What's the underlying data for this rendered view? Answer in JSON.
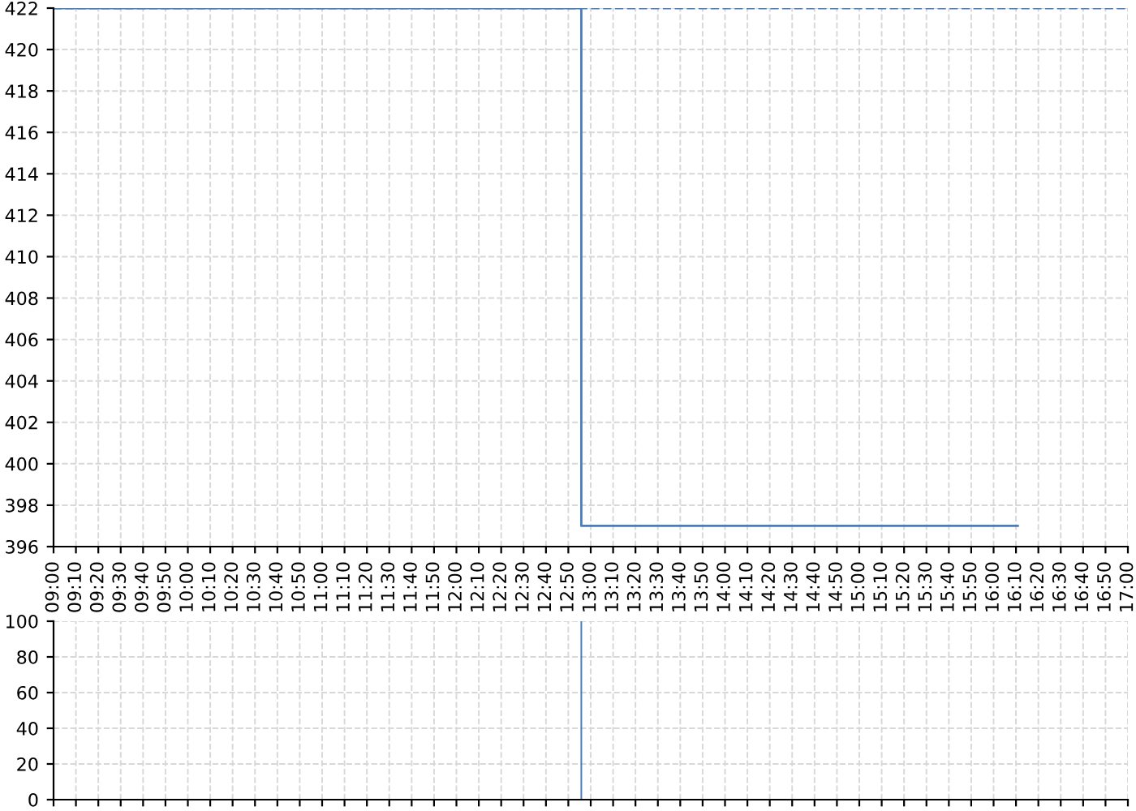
{
  "chart_data": [
    {
      "type": "step",
      "x": [
        9,
        12.93,
        16.18
      ],
      "series": [
        {
          "color": "#4a7ebb",
          "values": [
            422,
            397,
            397
          ]
        }
      ],
      "ref_lines": [
        {
          "axis": "y",
          "value": 422,
          "color": "#4a7ebb",
          "line_style": "dashed"
        }
      ],
      "xlim": [
        9,
        17
      ],
      "xticks": [
        {
          "value": 9,
          "label": "09:00"
        },
        {
          "value": 9.1667,
          "label": "09:10"
        },
        {
          "value": 9.3333,
          "label": "09:20"
        },
        {
          "value": 9.5,
          "label": "09:30"
        },
        {
          "value": 9.6667,
          "label": "09:40"
        },
        {
          "value": 9.8333,
          "label": "09:50"
        },
        {
          "value": 10,
          "label": "10:00"
        },
        {
          "value": 10.1667,
          "label": "10:10"
        },
        {
          "value": 10.3333,
          "label": "10:20"
        },
        {
          "value": 10.5,
          "label": "10:30"
        },
        {
          "value": 10.6667,
          "label": "10:40"
        },
        {
          "value": 10.8333,
          "label": "10:50"
        },
        {
          "value": 11,
          "label": "11:00"
        },
        {
          "value": 11.1667,
          "label": "11:10"
        },
        {
          "value": 11.3333,
          "label": "11:20"
        },
        {
          "value": 11.5,
          "label": "11:30"
        },
        {
          "value": 11.6667,
          "label": "11:40"
        },
        {
          "value": 11.8333,
          "label": "11:50"
        },
        {
          "value": 12,
          "label": "12:00"
        },
        {
          "value": 12.1667,
          "label": "12:10"
        },
        {
          "value": 12.3333,
          "label": "12:20"
        },
        {
          "value": 12.5,
          "label": "12:30"
        },
        {
          "value": 12.6667,
          "label": "12:40"
        },
        {
          "value": 12.8333,
          "label": "12:50"
        },
        {
          "value": 13,
          "label": "13:00"
        },
        {
          "value": 13.1667,
          "label": "13:10"
        },
        {
          "value": 13.3333,
          "label": "13:20"
        },
        {
          "value": 13.5,
          "label": "13:30"
        },
        {
          "value": 13.6667,
          "label": "13:40"
        },
        {
          "value": 13.8333,
          "label": "13:50"
        },
        {
          "value": 14,
          "label": "14:00"
        },
        {
          "value": 14.1667,
          "label": "14:10"
        },
        {
          "value": 14.3333,
          "label": "14:20"
        },
        {
          "value": 14.5,
          "label": "14:30"
        },
        {
          "value": 14.6667,
          "label": "14:40"
        },
        {
          "value": 14.8333,
          "label": "14:50"
        },
        {
          "value": 15,
          "label": "15:00"
        },
        {
          "value": 15.1667,
          "label": "15:10"
        },
        {
          "value": 15.3333,
          "label": "15:20"
        },
        {
          "value": 15.5,
          "label": "15:30"
        },
        {
          "value": 15.6667,
          "label": "15:40"
        },
        {
          "value": 15.8333,
          "label": "15:50"
        },
        {
          "value": 16,
          "label": "16:00"
        },
        {
          "value": 16.1667,
          "label": "16:10"
        },
        {
          "value": 16.3333,
          "label": "16:20"
        },
        {
          "value": 16.5,
          "label": "16:30"
        },
        {
          "value": 16.6667,
          "label": "16:40"
        },
        {
          "value": 16.8333,
          "label": "16:50"
        },
        {
          "value": 17,
          "label": "17:00"
        }
      ],
      "ylim": [
        396,
        422
      ],
      "yticks": [
        396,
        398,
        400,
        402,
        404,
        406,
        408,
        410,
        412,
        414,
        416,
        418,
        420,
        422
      ],
      "grid": true
    },
    {
      "type": "bar",
      "x": [
        12.93
      ],
      "series": [
        {
          "color": "#4a7ebb",
          "values": [
            100
          ]
        }
      ],
      "xlim": [
        9,
        17
      ],
      "ylim": [
        0,
        100
      ],
      "yticks": [
        0,
        20,
        40,
        60,
        80,
        100
      ],
      "grid": true,
      "tick_labels": "y"
    }
  ]
}
